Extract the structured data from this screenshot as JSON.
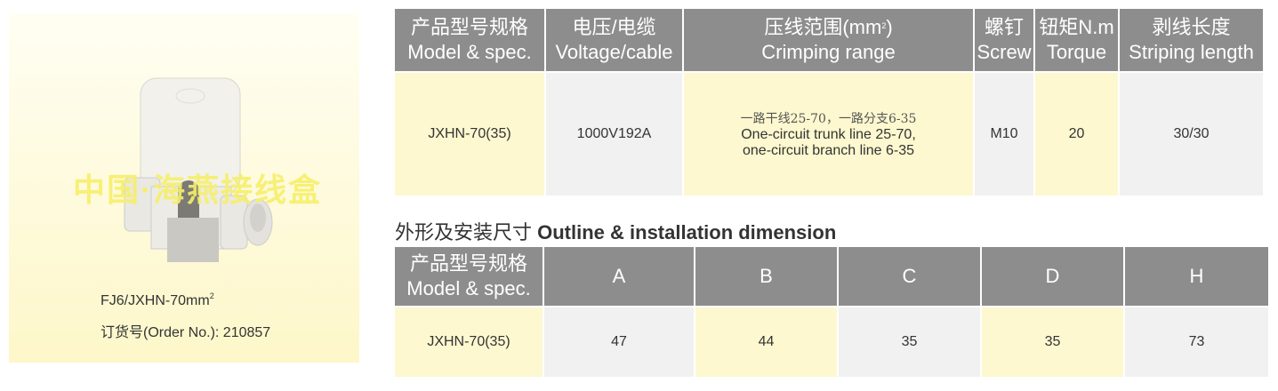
{
  "product": {
    "watermark": "中国·海燕接线盒",
    "model_caption": "FJ6/JXHN-70mm",
    "model_caption_sup": "2",
    "order_caption": "订货号(Order No.): 210857"
  },
  "spec_table": {
    "headers": [
      {
        "cn": "产品型号规格",
        "en": "Model & spec."
      },
      {
        "cn": "电压/电缆",
        "en": "Voltage/cable"
      },
      {
        "cn": "压线范围(mm",
        "sup": "2",
        "cn_end": ")",
        "en": "Crimping range"
      },
      {
        "cn": "螺钉",
        "en": "Screw"
      },
      {
        "cn": "钮矩N.m",
        "en": "Torque"
      },
      {
        "cn": "剥线长度",
        "en": "Striping length"
      }
    ],
    "row": {
      "model": "JXHN-70(35)",
      "voltage": "1000V192A",
      "crimping_cn": "一路干线25-70，一路分支6-35",
      "crimping_en1": "One-circuit trunk line 25-70,",
      "crimping_en2": "one-circuit branch line 6-35",
      "screw": "M10",
      "torque": "20",
      "striping": "30/30"
    }
  },
  "dimension_section": {
    "title_cn": "外形及安装尺寸 ",
    "title_en": "Outline & installation dimension",
    "headers": {
      "model_cn": "产品型号规格",
      "model_en": "Model & spec.",
      "cols": [
        "A",
        "B",
        "C",
        "D",
        "H"
      ]
    },
    "row": {
      "model": "JXHN-70(35)",
      "values": [
        "47",
        "44",
        "35",
        "35",
        "73"
      ]
    }
  },
  "colors": {
    "header": "#8d8d8d",
    "yellow_cell": "#fdf8cf",
    "gray_cell": "#f1f1f1"
  }
}
